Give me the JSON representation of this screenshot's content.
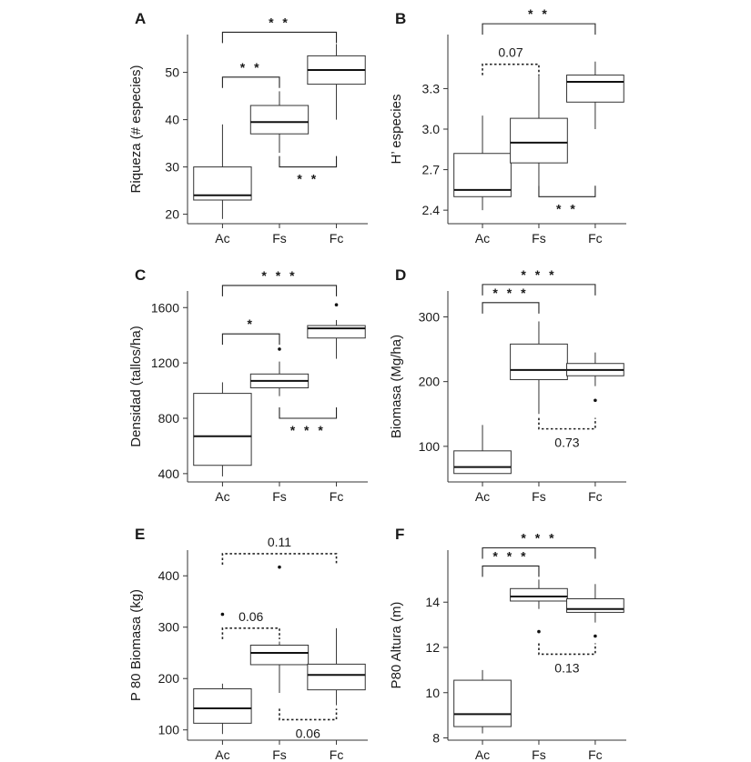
{
  "chart_data": [
    {
      "panel": "A",
      "type": "box",
      "ylabel": "Riqueza (# especies)",
      "categories": [
        "Ac",
        "Fs",
        "Fc"
      ],
      "yticks": [
        20,
        30,
        40,
        50
      ],
      "ylim": [
        18,
        58
      ],
      "boxes": [
        {
          "min": 19,
          "q1": 23,
          "median": 24,
          "q3": 30,
          "max": 39,
          "outliers": []
        },
        {
          "min": 33,
          "q1": 37,
          "median": 39.5,
          "q3": 43,
          "max": 46,
          "outliers": []
        },
        {
          "min": 40,
          "q1": 47.5,
          "median": 50.5,
          "q3": 53.5,
          "max": 56,
          "outliers": []
        }
      ],
      "comparisons": [
        {
          "from": "Ac",
          "to": "Fs",
          "y": 49,
          "label": "* *",
          "dashed": false,
          "inverted": false
        },
        {
          "from": "Ac",
          "to": "Fc",
          "y": 58.5,
          "label": "* *",
          "dashed": false,
          "inverted": false
        },
        {
          "from": "Fs",
          "to": "Fc",
          "y": 30,
          "label": "* *",
          "dashed": false,
          "inverted": true
        }
      ]
    },
    {
      "panel": "B",
      "type": "box",
      "ylabel": "H’ especies",
      "categories": [
        "Ac",
        "Fs",
        "Fc"
      ],
      "yticks": [
        2.4,
        2.7,
        3.0,
        3.3
      ],
      "yticklabels": [
        "2.4",
        "2.7",
        "3.0",
        "3.3"
      ],
      "ylim": [
        2.3,
        3.7
      ],
      "boxes": [
        {
          "min": 2.4,
          "q1": 2.5,
          "median": 2.55,
          "q3": 2.82,
          "max": 3.1,
          "outliers": []
        },
        {
          "min": 2.58,
          "q1": 2.75,
          "median": 2.9,
          "q3": 3.08,
          "max": 3.4,
          "outliers": []
        },
        {
          "min": 3.0,
          "q1": 3.2,
          "median": 3.35,
          "q3": 3.4,
          "max": 3.5,
          "outliers": []
        }
      ],
      "comparisons": [
        {
          "from": "Ac",
          "to": "Fs",
          "y": 3.48,
          "label": "0.07",
          "dashed": true,
          "inverted": false
        },
        {
          "from": "Ac",
          "to": "Fc",
          "y": 3.78,
          "label": "* *",
          "dashed": false,
          "inverted": false
        },
        {
          "from": "Fs",
          "to": "Fc",
          "y": 2.5,
          "label": "* *",
          "dashed": false,
          "inverted": true
        }
      ]
    },
    {
      "panel": "C",
      "type": "box",
      "ylabel": "Densidad (tallos/ha)",
      "categories": [
        "Ac",
        "Fs",
        "Fc"
      ],
      "yticks": [
        400,
        800,
        1200,
        1600
      ],
      "ylim": [
        340,
        1720
      ],
      "boxes": [
        {
          "min": 380,
          "q1": 460,
          "median": 670,
          "q3": 980,
          "max": 1060,
          "outliers": []
        },
        {
          "min": 960,
          "q1": 1020,
          "median": 1070,
          "q3": 1120,
          "max": 1210,
          "outliers": [
            1300
          ]
        },
        {
          "min": 1230,
          "q1": 1380,
          "median": 1450,
          "q3": 1470,
          "max": 1510,
          "outliers": [
            1620
          ]
        }
      ],
      "comparisons": [
        {
          "from": "Ac",
          "to": "Fs",
          "y": 1410,
          "label": "*",
          "dashed": false,
          "inverted": false
        },
        {
          "from": "Ac",
          "to": "Fc",
          "y": 1760,
          "label": "* * *",
          "dashed": false,
          "inverted": false
        },
        {
          "from": "Fs",
          "to": "Fc",
          "y": 800,
          "label": "* * *",
          "dashed": false,
          "inverted": true
        }
      ]
    },
    {
      "panel": "D",
      "type": "box",
      "ylabel": "Biomasa (Mg/ha)",
      "categories": [
        "Ac",
        "Fs",
        "Fc"
      ],
      "yticks": [
        100,
        200,
        300
      ],
      "ylim": [
        45,
        340
      ],
      "boxes": [
        {
          "min": 58,
          "q1": 58,
          "median": 68,
          "q3": 93,
          "max": 133,
          "outliers": []
        },
        {
          "min": 150,
          "q1": 203,
          "median": 218,
          "q3": 258,
          "max": 293,
          "outliers": []
        },
        {
          "min": 193,
          "q1": 209,
          "median": 218,
          "q3": 228,
          "max": 245,
          "outliers": [
            171
          ]
        }
      ],
      "comparisons": [
        {
          "from": "Ac",
          "to": "Fs",
          "y": 322,
          "label": "* * *",
          "dashed": false,
          "inverted": false
        },
        {
          "from": "Ac",
          "to": "Fc",
          "y": 350,
          "label": "* * *",
          "dashed": false,
          "inverted": false
        },
        {
          "from": "Fs",
          "to": "Fc",
          "y": 127,
          "label": "0.73",
          "dashed": true,
          "inverted": true
        }
      ]
    },
    {
      "panel": "E",
      "type": "box",
      "ylabel": "P 80 Biomasa (kg)",
      "categories": [
        "Ac",
        "Fs",
        "Fc"
      ],
      "yticks": [
        100,
        200,
        300,
        400
      ],
      "ylim": [
        80,
        450
      ],
      "boxes": [
        {
          "min": 92,
          "q1": 113,
          "median": 142,
          "q3": 180,
          "max": 190,
          "outliers": [
            325
          ]
        },
        {
          "min": 172,
          "q1": 227,
          "median": 250,
          "q3": 265,
          "max": 272,
          "outliers": [
            417
          ]
        },
        {
          "min": 148,
          "q1": 178,
          "median": 207,
          "q3": 228,
          "max": 298,
          "outliers": []
        }
      ],
      "comparisons": [
        {
          "from": "Ac",
          "to": "Fs",
          "y": 298,
          "label": "0.06",
          "dashed": true,
          "inverted": false
        },
        {
          "from": "Ac",
          "to": "Fc",
          "y": 443,
          "label": "0.11",
          "dashed": true,
          "inverted": false
        },
        {
          "from": "Fs",
          "to": "Fc",
          "y": 120,
          "label": "0.06",
          "dashed": true,
          "inverted": true
        }
      ]
    },
    {
      "panel": "F",
      "type": "box",
      "ylabel": "P80 Altura (m)",
      "categories": [
        "Ac",
        "Fs",
        "Fc"
      ],
      "yticks": [
        8,
        10,
        12,
        14
      ],
      "ylim": [
        7.9,
        16.3
      ],
      "boxes": [
        {
          "min": 8.2,
          "q1": 8.5,
          "median": 9.05,
          "q3": 10.55,
          "max": 11.0,
          "outliers": []
        },
        {
          "min": 13.7,
          "q1": 14.05,
          "median": 14.25,
          "q3": 14.6,
          "max": 15.0,
          "outliers": [
            12.7
          ]
        },
        {
          "min": 13.1,
          "q1": 13.55,
          "median": 13.7,
          "q3": 14.15,
          "max": 14.8,
          "outliers": [
            12.5
          ]
        }
      ],
      "comparisons": [
        {
          "from": "Ac",
          "to": "Fs",
          "y": 15.6,
          "label": "* * *",
          "dashed": false,
          "inverted": false
        },
        {
          "from": "Ac",
          "to": "Fc",
          "y": 16.4,
          "label": "* * *",
          "dashed": false,
          "inverted": false
        },
        {
          "from": "Fs",
          "to": "Fc",
          "y": 11.7,
          "label": "0.13",
          "dashed": true,
          "inverted": true
        }
      ]
    }
  ]
}
